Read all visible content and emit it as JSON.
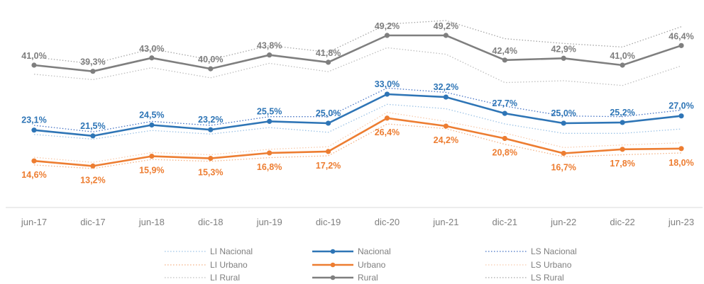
{
  "chart_data": {
    "type": "line",
    "title": "",
    "xlabel": "",
    "ylabel": "",
    "ylim": [
      8,
      56
    ],
    "grid": false,
    "legend_position": "bottom",
    "categories": [
      "jun-17",
      "dic-17",
      "jun-18",
      "dic-18",
      "jun-19",
      "dic-19",
      "dic-20",
      "jun-21",
      "dic-21",
      "jun-22",
      "dic-22",
      "jun-23"
    ],
    "series": [
      {
        "name": "LI Nacional",
        "style": "dotted",
        "color": "#9dc3e6",
        "values": [
          21.9,
          20.6,
          23.0,
          22.0,
          23.8,
          22.5,
          30.2,
          29.0,
          24.8,
          22.2,
          22.2,
          23.4
        ],
        "labels": null
      },
      {
        "name": "Nacional",
        "style": "solid",
        "color": "#2e75b6",
        "values": [
          23.1,
          21.5,
          24.5,
          23.2,
          25.5,
          25.0,
          33.0,
          32.2,
          27.7,
          25.0,
          25.2,
          27.0
        ],
        "labels": [
          "23,1%",
          "21,5%",
          "24,5%",
          "23,2%",
          "25,5%",
          "25,0%",
          "33,0%",
          "32,2%",
          "27,7%",
          "25,0%",
          "25,2%",
          "27,0%"
        ]
      },
      {
        "name": "LS Nacional",
        "style": "dotted",
        "color": "#4472c4",
        "values": [
          24.4,
          22.6,
          25.5,
          24.4,
          26.8,
          26.8,
          34.7,
          33.5,
          29.7,
          27.0,
          26.8,
          28.6
        ],
        "labels": null
      },
      {
        "name": "LI Urbano",
        "style": "dotted",
        "color": "#f4b183",
        "values": [
          13.5,
          12.5,
          15.0,
          14.5,
          15.5,
          16.0,
          24.8,
          23.5,
          19.2,
          15.8,
          16.3,
          16.8
        ],
        "labels": null
      },
      {
        "name": "Urbano",
        "style": "solid",
        "color": "#ed7d31",
        "values": [
          14.6,
          13.2,
          15.9,
          15.3,
          16.8,
          17.2,
          26.4,
          24.2,
          20.8,
          16.7,
          17.8,
          18.0
        ],
        "labels": [
          "14,6%",
          "13,2%",
          "15,9%",
          "15,3%",
          "16,8%",
          "17,2%",
          "26,4%",
          "24,2%",
          "20,8%",
          "16,7%",
          "17,8%",
          "18,0%"
        ]
      },
      {
        "name": "LS Urbano",
        "style": "dotted",
        "color": "#f8cbad",
        "values": [
          15.6,
          14.2,
          16.9,
          16.3,
          17.8,
          18.5,
          28.0,
          25.5,
          22.3,
          18.3,
          19.0,
          19.6
        ],
        "labels": null
      },
      {
        "name": "LI Rural",
        "style": "dotted",
        "color": "#bfbfbf",
        "values": [
          38.5,
          37.0,
          40.3,
          37.5,
          41.5,
          39.2,
          45.8,
          44.0,
          36.2,
          36.7,
          35.4,
          40.8
        ],
        "labels": null
      },
      {
        "name": "Rural",
        "style": "solid",
        "color": "#7f7f7f",
        "values": [
          41.0,
          39.3,
          43.0,
          40.0,
          43.8,
          41.8,
          49.2,
          49.2,
          42.4,
          42.9,
          41.0,
          46.4
        ],
        "labels": [
          "41,0%",
          "39,3%",
          "43,0%",
          "40,0%",
          "43,8%",
          "41,8%",
          "49,2%",
          "49,2%",
          "42,4%",
          "42,9%",
          "41,0%",
          "46,4%"
        ]
      },
      {
        "name": "LS Rural",
        "style": "dotted",
        "color": "#a6a6a6",
        "values": [
          43.2,
          41.4,
          45.5,
          42.5,
          46.4,
          44.6,
          52.3,
          53.3,
          48.3,
          47.0,
          46.0,
          51.6
        ],
        "labels": null
      }
    ],
    "legend_order": [
      "LI Nacional",
      "Nacional",
      "LS Nacional",
      "LI Urbano",
      "Urbano",
      "LS Urbano",
      "LI Rural",
      "Rural",
      "LS Rural"
    ]
  }
}
